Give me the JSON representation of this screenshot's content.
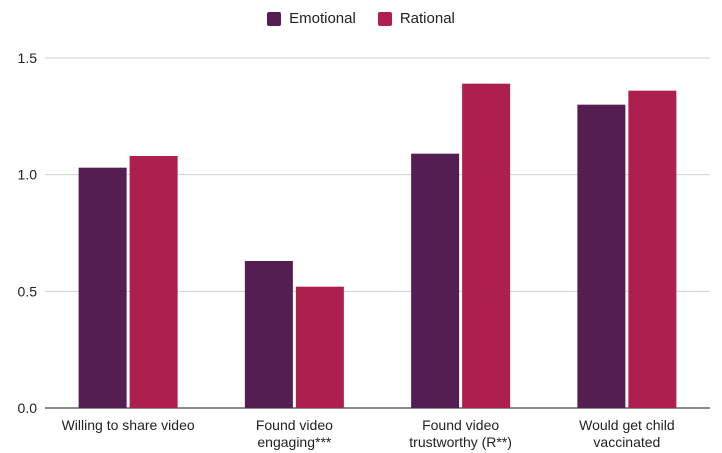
{
  "chart_data": {
    "type": "bar",
    "categories": [
      [
        "Willing to share video"
      ],
      [
        "Found video",
        "engaging***"
      ],
      [
        "Found video",
        "trustworthy (R**)"
      ],
      [
        "Would get child",
        "vaccinated"
      ]
    ],
    "series": [
      {
        "name": "Emotional",
        "color": "#541e53",
        "values": [
          1.03,
          0.63,
          1.09,
          1.3
        ]
      },
      {
        "name": "Rational",
        "color": "#ad1f4e",
        "values": [
          1.08,
          0.52,
          1.39,
          1.36
        ]
      }
    ],
    "yticks": [
      0.0,
      0.5,
      1.0,
      1.5
    ],
    "ytick_labels": [
      "0.0",
      "0.5",
      "1.0",
      "1.5"
    ],
    "ylim": [
      0,
      1.5
    ],
    "grid": true,
    "legend_position": "top-center",
    "title": "",
    "xlabel": "",
    "ylabel": ""
  }
}
